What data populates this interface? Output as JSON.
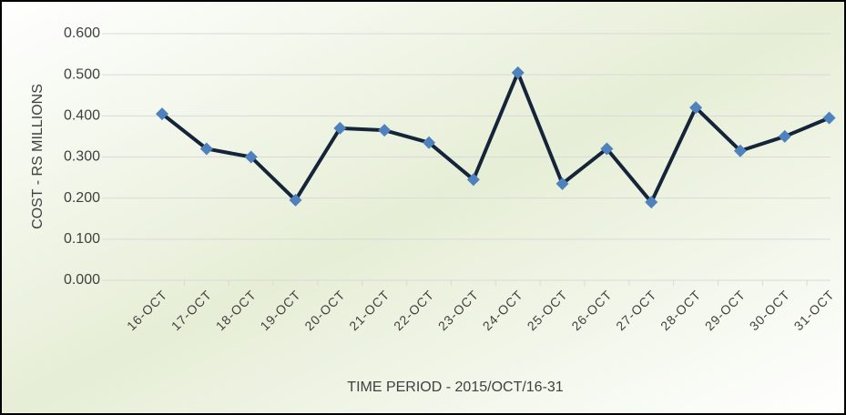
{
  "chart_data": {
    "type": "line",
    "x_label": "TIME PERIOD -  2015/OCT/16-31",
    "y_label": "COST - RS  MILLIONS",
    "categories": [
      "16-OCT",
      "17-OCT",
      "18-OCT",
      "19-OCT",
      "20-OCT",
      "21-OCT",
      "22-OCT",
      "23-OCT",
      "24-OCT",
      "25-OCT",
      "26-OCT",
      "27-OCT",
      "28-OCT",
      "29-OCT",
      "30-OCT",
      "31-OCT"
    ],
    "series": [
      {
        "color": "#16243a",
        "marker_color": "#4f81bd",
        "values": [
          0.405,
          0.32,
          0.3,
          0.195,
          0.37,
          0.365,
          0.335,
          0.245,
          0.505,
          0.235,
          0.32,
          0.19,
          0.42,
          0.315,
          0.35,
          0.395
        ]
      }
    ],
    "ylim": [
      0,
      0.6
    ],
    "yticks": [
      {
        "value": 0,
        "label": "0.000"
      },
      {
        "value": 0.1,
        "label": "0.100"
      },
      {
        "value": 0.2,
        "label": "0.200"
      },
      {
        "value": 0.3,
        "label": "0.300"
      },
      {
        "value": 0.4,
        "label": "0.400"
      },
      {
        "value": 0.5,
        "label": "0.500"
      },
      {
        "value": 0.6,
        "label": "0.600"
      }
    ],
    "grid": true
  }
}
